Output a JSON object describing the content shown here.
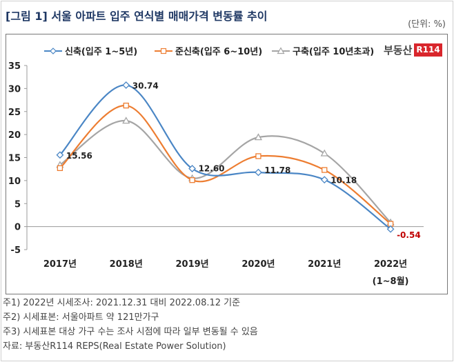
{
  "title": "[그림 1] 서울 아파트 입주 연식별 매매가격 변동률 추이",
  "unit": "(단위: %)",
  "logo": {
    "text": "부동산",
    "badge": "R114"
  },
  "chart_data": {
    "type": "line",
    "categories": [
      "2017년",
      "2018년",
      "2019년",
      "2020년",
      "2021년",
      "2022년 (1~8월)"
    ],
    "category_lines": [
      [
        "2017년"
      ],
      [
        "2018년"
      ],
      [
        "2019년"
      ],
      [
        "2020년"
      ],
      [
        "2021년"
      ],
      [
        "2022년",
        "(1~8월)"
      ]
    ],
    "ylim": [
      -5,
      35
    ],
    "yticks": [
      -5,
      0,
      5,
      10,
      15,
      20,
      25,
      30,
      35
    ],
    "grid": false,
    "legend_position": "top",
    "series": [
      {
        "name": "신축(입주 1~5년)",
        "color": "#4a86c5",
        "marker": "diamond",
        "values": [
          15.56,
          30.74,
          12.6,
          11.78,
          10.18,
          -0.54
        ],
        "labels": [
          "15.56",
          "30.74",
          "12.60",
          "11.78",
          "10.18",
          "-0.54"
        ]
      },
      {
        "name": "준신축(입주 6~10년)",
        "color": "#ed7d31",
        "marker": "square",
        "values": [
          12.7,
          26.3,
          10.1,
          15.3,
          12.3,
          0.6
        ],
        "labels": [
          "",
          "",
          "",
          "",
          "",
          ""
        ]
      },
      {
        "name": "구축(입주 10년초과)",
        "color": "#a5a5a5",
        "marker": "triangle",
        "values": [
          13.4,
          23.0,
          10.5,
          19.4,
          15.9,
          0.9
        ],
        "labels": [
          "",
          "",
          "",
          "",
          "",
          ""
        ]
      }
    ],
    "negative_label_color": "#c00000"
  },
  "notes": [
    "주1) 2022년 시세조사: 2021.12.31 대비 2022.08.12 기준",
    "주2) 시세표본: 서울아파트 약 121만가구",
    "주3) 시세표본 대상 가구 수는 조사 시점에 따라 일부 변동될 수 있음",
    "자료: 부동산R114 REPS(Real Estate Power Solution)"
  ]
}
